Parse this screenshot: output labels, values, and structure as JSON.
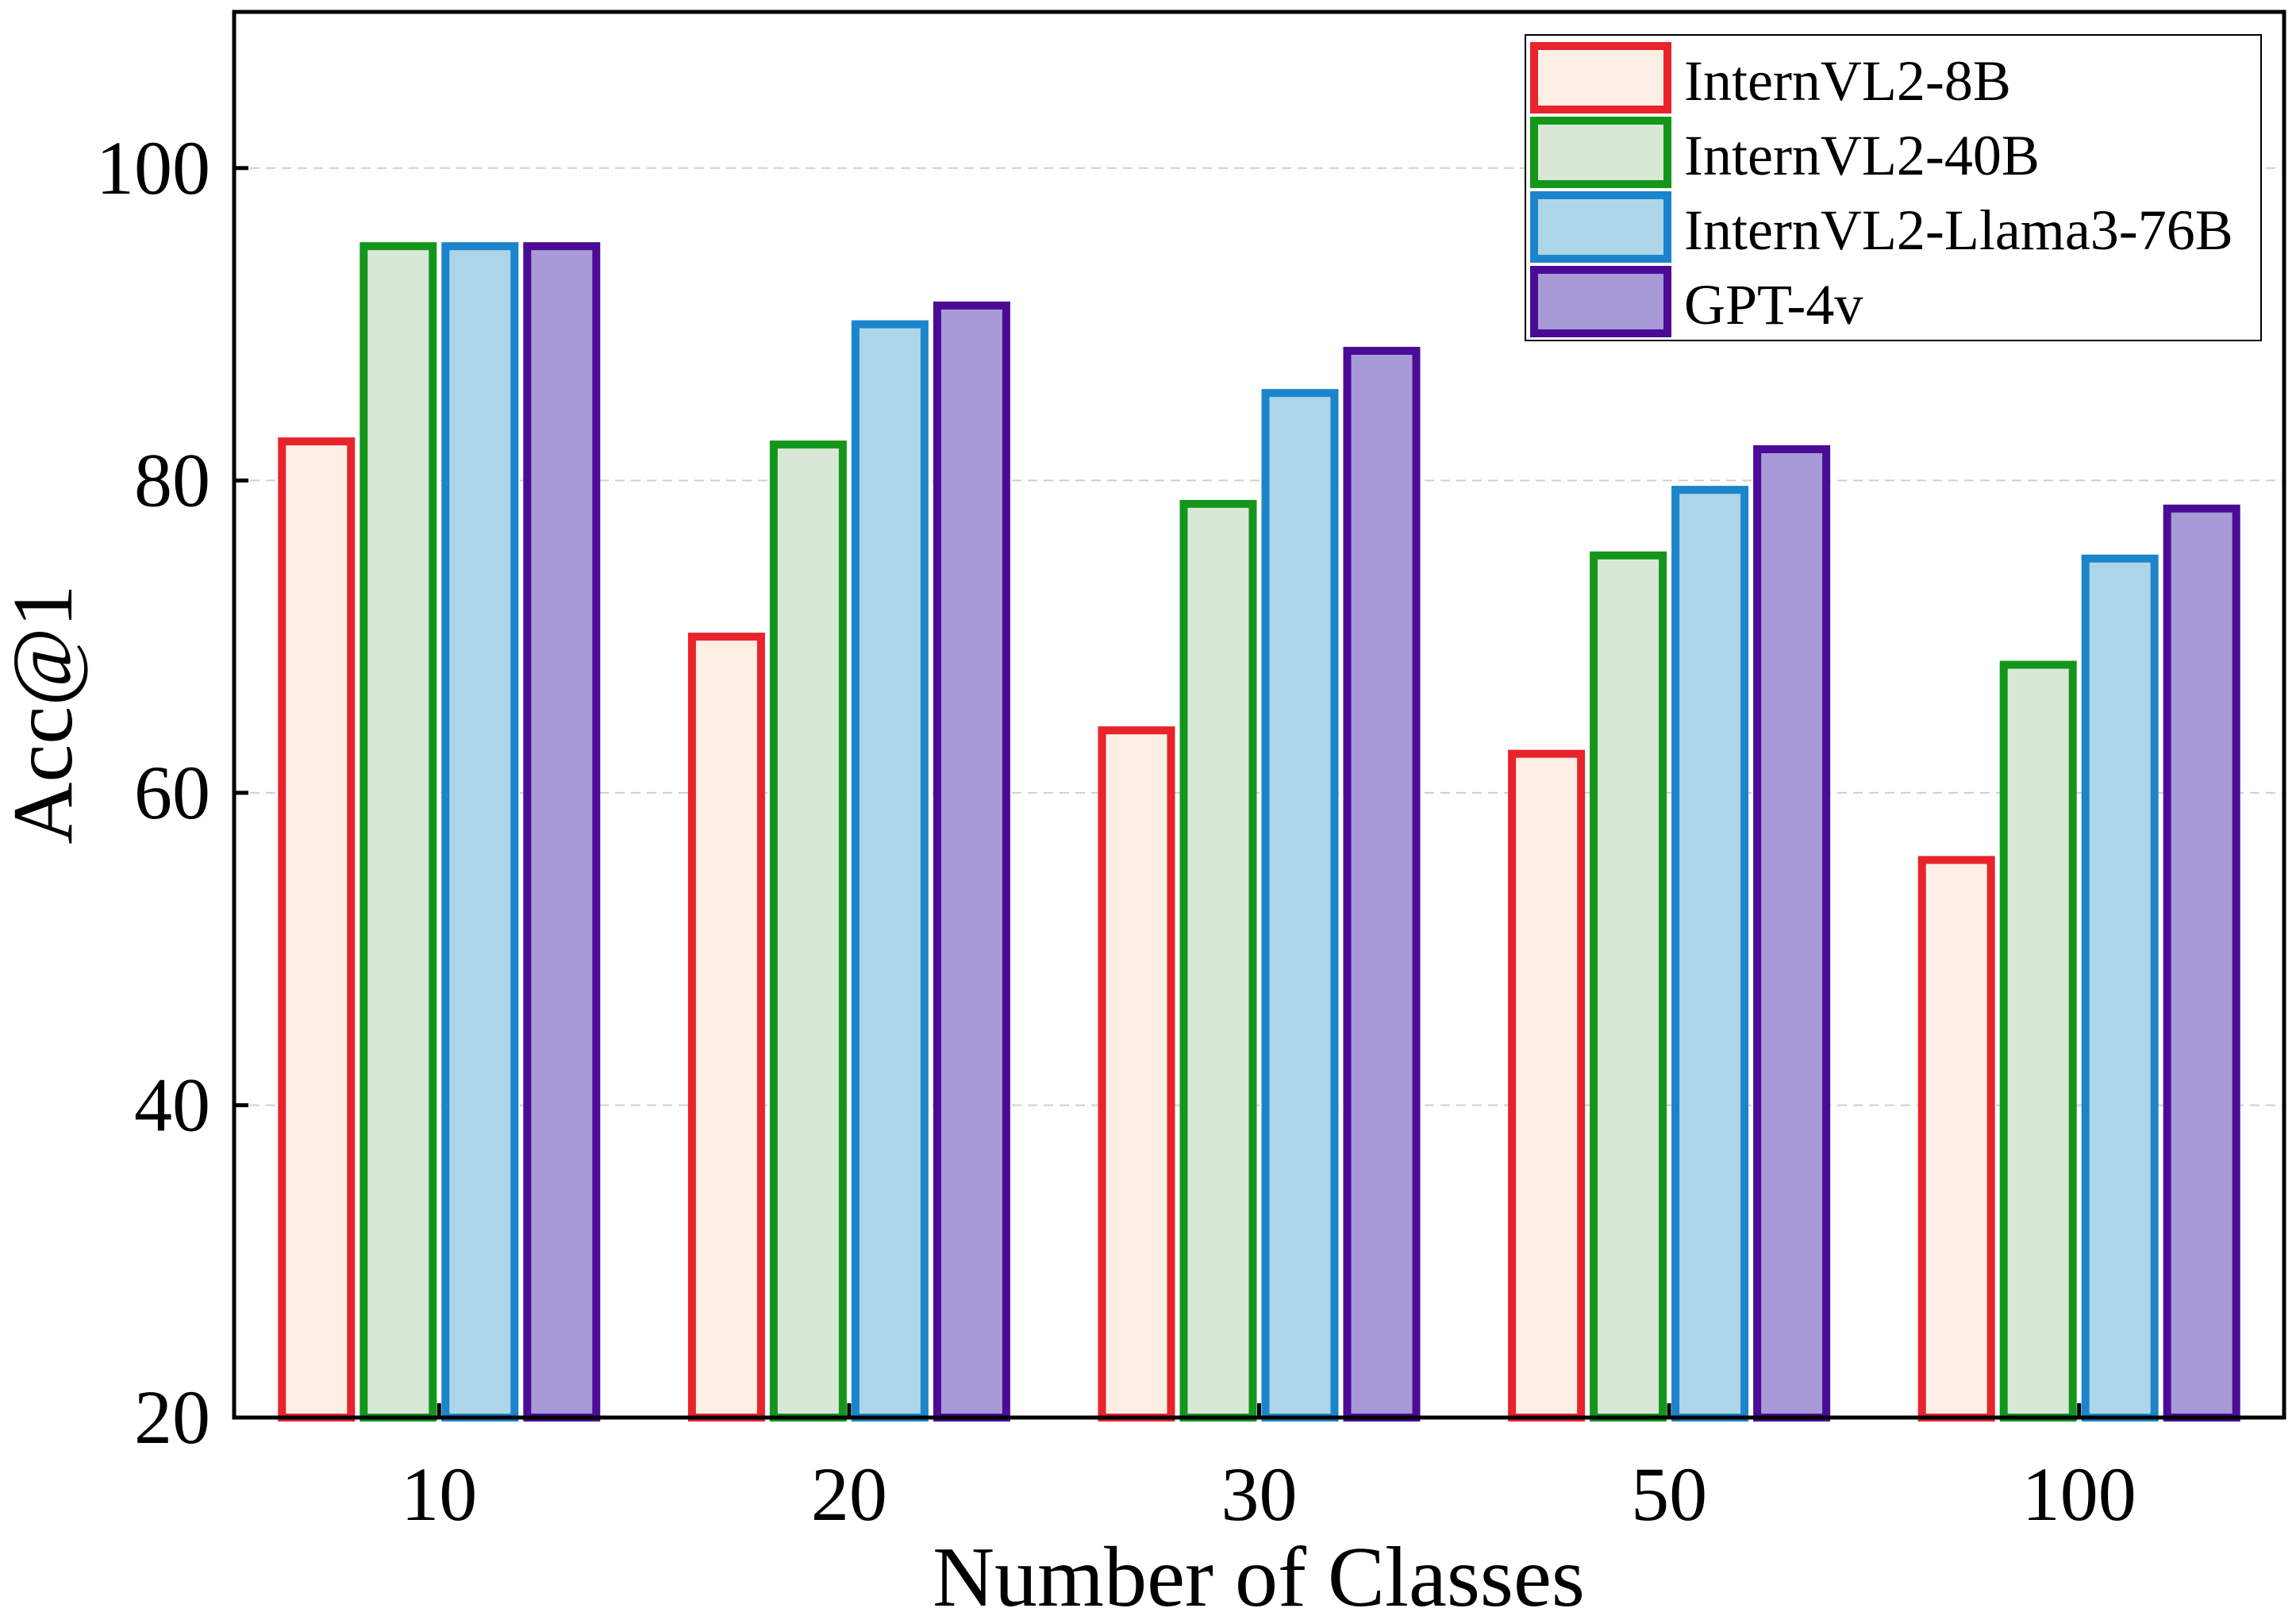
{
  "chart_data": {
    "type": "bar",
    "title": "",
    "xlabel": "Number of Classes",
    "ylabel": "Acc@1",
    "categories": [
      "10",
      "20",
      "30",
      "50",
      "100"
    ],
    "ylim": [
      20,
      110
    ],
    "yticks": [
      20,
      40,
      60,
      80,
      100
    ],
    "ytick_labels": [
      "20",
      "40",
      "60",
      "80",
      "100"
    ],
    "grid": true,
    "legend_position": "top-right",
    "series": [
      {
        "name": "InternVL2-8B",
        "values": [
          82.5,
          70.0,
          64.0,
          62.5,
          55.7
        ],
        "fill": "#fdefe6",
        "stroke": "#e8232b"
      },
      {
        "name": "InternVL2-40B",
        "values": [
          95.0,
          82.3,
          78.5,
          75.2,
          68.2
        ],
        "fill": "#d9e8d6",
        "stroke": "#13961b"
      },
      {
        "name": "InternVL2-Llama3-76B",
        "values": [
          95.0,
          90.0,
          85.6,
          79.4,
          75.0
        ],
        "fill": "#acd6e8",
        "stroke": "#1b84cb"
      },
      {
        "name": "GPT-4v",
        "values": [
          95.0,
          91.2,
          88.3,
          82.0,
          78.2
        ],
        "fill": "#a89ad6",
        "stroke": "#4b0b96"
      }
    ]
  }
}
